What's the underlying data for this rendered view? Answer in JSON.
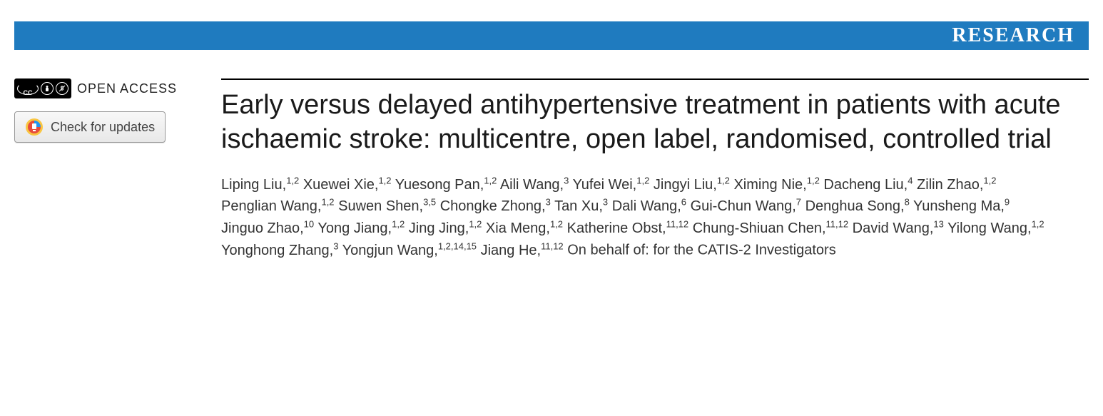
{
  "header": {
    "section_label": "RESEARCH",
    "bar_color": "#1f7bbf"
  },
  "sidebar": {
    "open_access_label": "OPEN ACCESS",
    "cc_labels": {
      "cc": "CC",
      "by": "BY",
      "nc": "NC"
    },
    "check_updates_label": "Check for updates"
  },
  "article": {
    "title": "Early versus delayed antihypertensive treatment in patients with acute ischaemic stroke: multicentre, open label, randomised, controlled trial",
    "authors": [
      {
        "name": "Liping Liu",
        "affil": "1,2"
      },
      {
        "name": "Xuewei Xie",
        "affil": "1,2"
      },
      {
        "name": "Yuesong Pan",
        "affil": "1,2"
      },
      {
        "name": "Aili Wang",
        "affil": "3"
      },
      {
        "name": "Yufei Wei",
        "affil": "1,2"
      },
      {
        "name": "Jingyi Liu",
        "affil": "1,2"
      },
      {
        "name": "Ximing Nie",
        "affil": "1,2"
      },
      {
        "name": "Dacheng Liu",
        "affil": "4"
      },
      {
        "name": "Zilin Zhao",
        "affil": "1,2"
      },
      {
        "name": "Penglian Wang",
        "affil": "1,2"
      },
      {
        "name": "Suwen Shen",
        "affil": "3,5"
      },
      {
        "name": "Chongke Zhong",
        "affil": "3"
      },
      {
        "name": "Tan Xu",
        "affil": "3"
      },
      {
        "name": "Dali Wang",
        "affil": "6"
      },
      {
        "name": "Gui-Chun Wang",
        "affil": "7"
      },
      {
        "name": "Denghua Song",
        "affil": "8"
      },
      {
        "name": "Yunsheng Ma",
        "affil": "9"
      },
      {
        "name": "Jinguo Zhao",
        "affil": "10"
      },
      {
        "name": "Yong Jiang",
        "affil": "1,2"
      },
      {
        "name": "Jing Jing",
        "affil": "1,2"
      },
      {
        "name": "Xia Meng",
        "affil": "1,2"
      },
      {
        "name": "Katherine Obst",
        "affil": "11,12"
      },
      {
        "name": "Chung-Shiuan Chen",
        "affil": "11,12"
      },
      {
        "name": "David Wang",
        "affil": "13"
      },
      {
        "name": "Yilong Wang",
        "affil": "1,2"
      },
      {
        "name": "Yonghong Zhang",
        "affil": "3"
      },
      {
        "name": "Yongjun Wang",
        "affil": "1,2,14,15"
      },
      {
        "name": "Jiang He",
        "affil": "11,12"
      }
    ],
    "behalf_text": "On behalf of: for the CATIS-2 Investigators"
  },
  "colors": {
    "crossmark_outer": "#f9c642",
    "crossmark_mid": "#e74c3c",
    "crossmark_inner": "#2196f3"
  }
}
